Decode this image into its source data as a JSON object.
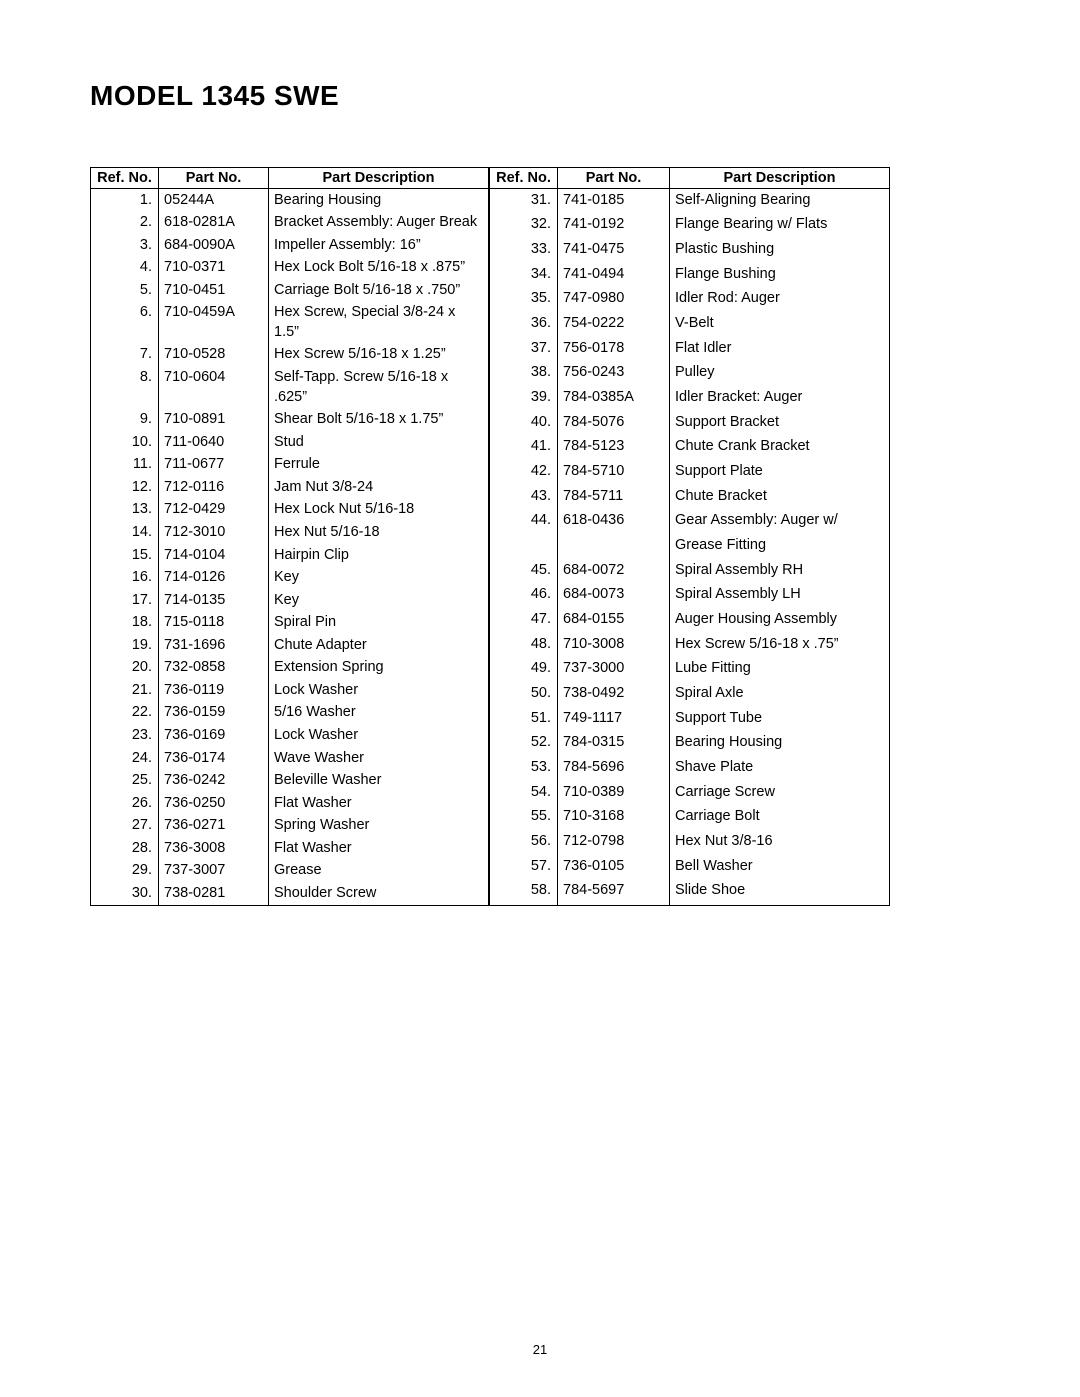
{
  "title": "MODEL 1345 SWE",
  "page_number": "21",
  "columns": {
    "ref": "Ref. No.",
    "part": "Part No.",
    "desc": "Part Description"
  },
  "left_rows": [
    {
      "ref": "1.",
      "part": "05244A",
      "desc": "Bearing Housing"
    },
    {
      "ref": "2.",
      "part": "618-0281A",
      "desc": "Bracket Assembly: Auger Break"
    },
    {
      "ref": "3.",
      "part": "684-0090A",
      "desc": "Impeller Assembly: 16”"
    },
    {
      "ref": "4.",
      "part": "710-0371",
      "desc": "Hex Lock Bolt 5/16-18 x .875”"
    },
    {
      "ref": "5.",
      "part": "710-0451",
      "desc": "Carriage Bolt 5/16-18 x .750”"
    },
    {
      "ref": "6.",
      "part": "710-0459A",
      "desc": "Hex Screw, Special 3/8-24 x 1.5”"
    },
    {
      "ref": "7.",
      "part": "710-0528",
      "desc": "Hex Screw 5/16-18 x 1.25”"
    },
    {
      "ref": "8.",
      "part": "710-0604",
      "desc": "Self-Tapp. Screw 5/16-18 x .625”"
    },
    {
      "ref": "9.",
      "part": "710-0891",
      "desc": "Shear Bolt 5/16-18 x 1.75”"
    },
    {
      "ref": "10.",
      "part": "711-0640",
      "desc": "Stud"
    },
    {
      "ref": "11.",
      "part": "711-0677",
      "desc": "Ferrule"
    },
    {
      "ref": "12.",
      "part": "712-0116",
      "desc": "Jam Nut 3/8-24"
    },
    {
      "ref": "13.",
      "part": "712-0429",
      "desc": "Hex Lock Nut 5/16-18"
    },
    {
      "ref": "14.",
      "part": "712-3010",
      "desc": "Hex Nut 5/16-18"
    },
    {
      "ref": "15.",
      "part": "714-0104",
      "desc": "Hairpin Clip"
    },
    {
      "ref": "16.",
      "part": "714-0126",
      "desc": "Key"
    },
    {
      "ref": "17.",
      "part": "714-0135",
      "desc": "Key"
    },
    {
      "ref": "18.",
      "part": "715-0118",
      "desc": "Spiral Pin"
    },
    {
      "ref": "19.",
      "part": "731-1696",
      "desc": "Chute Adapter"
    },
    {
      "ref": "20.",
      "part": "732-0858",
      "desc": "Extension Spring"
    },
    {
      "ref": "21.",
      "part": "736-0119",
      "desc": "Lock Washer"
    },
    {
      "ref": "22.",
      "part": "736-0159",
      "desc": "5/16 Washer"
    },
    {
      "ref": "23.",
      "part": "736-0169",
      "desc": "Lock Washer"
    },
    {
      "ref": "24.",
      "part": "736-0174",
      "desc": "Wave Washer"
    },
    {
      "ref": "25.",
      "part": "736-0242",
      "desc": "Beleville Washer"
    },
    {
      "ref": "26.",
      "part": "736-0250",
      "desc": "Flat Washer"
    },
    {
      "ref": "27.",
      "part": "736-0271",
      "desc": "Spring Washer"
    },
    {
      "ref": "28.",
      "part": "736-3008",
      "desc": "Flat Washer"
    },
    {
      "ref": "29.",
      "part": "737-3007",
      "desc": "Grease"
    },
    {
      "ref": "30.",
      "part": "738-0281",
      "desc": "Shoulder Screw"
    }
  ],
  "right_rows": [
    {
      "ref": "31.",
      "part": "741-0185",
      "desc": "Self-Aligning Bearing"
    },
    {
      "ref": "32.",
      "part": "741-0192",
      "desc": "Flange Bearing w/ Flats"
    },
    {
      "ref": "33.",
      "part": "741-0475",
      "desc": "Plastic Bushing"
    },
    {
      "ref": "34.",
      "part": "741-0494",
      "desc": "Flange Bushing"
    },
    {
      "ref": "35.",
      "part": "747-0980",
      "desc": "Idler Rod: Auger"
    },
    {
      "ref": "36.",
      "part": "754-0222",
      "desc": "V-Belt"
    },
    {
      "ref": "37.",
      "part": "756-0178",
      "desc": "Flat Idler"
    },
    {
      "ref": "38.",
      "part": "756-0243",
      "desc": "Pulley"
    },
    {
      "ref": "39.",
      "part": "784-0385A",
      "desc": "Idler Bracket: Auger"
    },
    {
      "ref": "40.",
      "part": "784-5076",
      "desc": "Support Bracket"
    },
    {
      "ref": "41.",
      "part": "784-5123",
      "desc": "Chute Crank Bracket"
    },
    {
      "ref": "42.",
      "part": "784-5710",
      "desc": "Support Plate"
    },
    {
      "ref": "43.",
      "part": "784-5711",
      "desc": "Chute Bracket"
    },
    {
      "ref": "44.",
      "part": "618-0436",
      "desc": "Gear Assembly: Auger w/"
    },
    {
      "ref": "",
      "part": "",
      "desc": "Grease Fitting"
    },
    {
      "ref": "45.",
      "part": "684-0072",
      "desc": "Spiral Assembly RH"
    },
    {
      "ref": "46.",
      "part": "684-0073",
      "desc": "Spiral Assembly LH"
    },
    {
      "ref": "47.",
      "part": "684-0155",
      "desc": "Auger Housing Assembly"
    },
    {
      "ref": "48.",
      "part": "710-3008",
      "desc": "Hex Screw 5/16-18 x .75”"
    },
    {
      "ref": "49.",
      "part": "737-3000",
      "desc": "Lube Fitting"
    },
    {
      "ref": "50.",
      "part": "738-0492",
      "desc": "Spiral Axle"
    },
    {
      "ref": "51.",
      "part": "749-1117",
      "desc": "Support Tube"
    },
    {
      "ref": "52.",
      "part": "784-0315",
      "desc": "Bearing Housing"
    },
    {
      "ref": "53.",
      "part": "784-5696",
      "desc": "Shave Plate"
    },
    {
      "ref": "54.",
      "part": "710-0389",
      "desc": "Carriage Screw"
    },
    {
      "ref": "55.",
      "part": "710-3168",
      "desc": "Carriage Bolt"
    },
    {
      "ref": "56.",
      "part": "712-0798",
      "desc": "Hex Nut 3/8-16"
    },
    {
      "ref": "57.",
      "part": "736-0105",
      "desc": "Bell Washer"
    },
    {
      "ref": "58.",
      "part": "784-5697",
      "desc": "Slide Shoe"
    }
  ]
}
